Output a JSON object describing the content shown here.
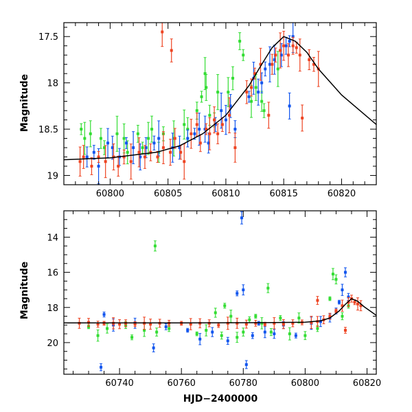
{
  "colors": {
    "green": "#33dd33",
    "blue": "#1155ee",
    "red": "#ee4422",
    "model": "#000000"
  },
  "chart_data": [
    {
      "type": "scatter",
      "title": "",
      "xlabel": "",
      "ylabel": "Magnitude",
      "xlim": [
        60796,
        60823
      ],
      "ylim": [
        19.1,
        17.35
      ],
      "y_inverted": true,
      "x_ticks": [
        60800,
        60805,
        60810,
        60815,
        60820
      ],
      "x_tick_labels": [
        "60800",
        "60805",
        "60810",
        "60815",
        "60820"
      ],
      "y_ticks": [
        17.5,
        18,
        18.5,
        19
      ],
      "y_tick_labels": [
        "17.5",
        "18",
        "18.5",
        "19"
      ],
      "model_curve": {
        "x": [
          60796,
          60800,
          60804,
          60806,
          60808,
          60810,
          60812,
          60813,
          60814,
          60815,
          60816,
          60817,
          60818,
          60820,
          60823
        ],
        "y": [
          18.83,
          18.81,
          18.75,
          18.68,
          18.55,
          18.35,
          18.03,
          17.82,
          17.62,
          17.5,
          17.55,
          17.67,
          17.85,
          18.13,
          18.45
        ]
      },
      "series": [
        {
          "name": "",
          "color": "green",
          "points": [
            [
              60797.5,
              18.5
            ],
            [
              60797.8,
              18.6
            ],
            [
              60798.3,
              18.55
            ],
            [
              60799.2,
              18.6
            ],
            [
              60799.5,
              18.7
            ],
            [
              60800.6,
              18.55
            ],
            [
              60801.2,
              18.6
            ],
            [
              60801.5,
              18.75
            ],
            [
              60802.4,
              18.55
            ],
            [
              60802.8,
              18.7
            ],
            [
              60803.3,
              18.6
            ],
            [
              60803.6,
              18.5
            ],
            [
              60804.2,
              18.75
            ],
            [
              60804.6,
              18.55
            ],
            [
              60805.5,
              18.6
            ],
            [
              60806.4,
              18.45
            ],
            [
              60806.7,
              18.5
            ],
            [
              60807.5,
              18.3
            ],
            [
              60807.9,
              18.15
            ],
            [
              60808.2,
              17.9
            ],
            [
              60808.3,
              18.05
            ],
            [
              60808.6,
              18.35
            ],
            [
              60809.0,
              18.4
            ],
            [
              60809.3,
              18.1
            ],
            [
              60810.2,
              18.1
            ],
            [
              60810.6,
              17.95
            ],
            [
              60811.2,
              17.55
            ],
            [
              60811.5,
              17.7
            ],
            [
              60812.2,
              18.2
            ],
            [
              60812.6,
              18.05
            ],
            [
              60813.1,
              18.2
            ],
            [
              60813.3,
              18.3
            ],
            [
              60814.5,
              17.85
            ]
          ]
        },
        {
          "name": "",
          "color": "blue",
          "points": [
            [
              60798.0,
              18.8
            ],
            [
              60798.6,
              18.75
            ],
            [
              60799.0,
              18.9
            ],
            [
              60799.8,
              18.65
            ],
            [
              60800.2,
              18.7
            ],
            [
              60800.8,
              18.8
            ],
            [
              60801.4,
              18.65
            ],
            [
              60802.0,
              18.7
            ],
            [
              60802.6,
              18.8
            ],
            [
              60803.1,
              18.7
            ],
            [
              60803.8,
              18.65
            ],
            [
              60804.2,
              18.6
            ],
            [
              60805.4,
              18.7
            ],
            [
              60806.0,
              18.7
            ],
            [
              60806.7,
              18.6
            ],
            [
              60807.3,
              18.55
            ],
            [
              60807.7,
              18.5
            ],
            [
              60808.2,
              18.5
            ],
            [
              60808.5,
              18.65
            ],
            [
              60809.1,
              18.45
            ],
            [
              60809.6,
              18.3
            ],
            [
              60810.0,
              18.4
            ],
            [
              60810.4,
              18.25
            ],
            [
              60810.8,
              18.5
            ],
            [
              60812.0,
              18.15
            ],
            [
              60812.4,
              17.95
            ],
            [
              60812.8,
              18.1
            ],
            [
              60813.1,
              18.0
            ],
            [
              60813.4,
              17.85
            ],
            [
              60813.8,
              17.8
            ],
            [
              60814.2,
              17.75
            ],
            [
              60814.8,
              17.7
            ],
            [
              60815.2,
              17.6
            ],
            [
              60815.5,
              17.55
            ],
            [
              60815.8,
              17.5
            ],
            [
              60815.5,
              18.25
            ]
          ]
        },
        {
          "name": "",
          "color": "red",
          "points": [
            [
              60797.4,
              18.85
            ],
            [
              60797.7,
              18.8
            ],
            [
              60798.4,
              18.9
            ],
            [
              60799.0,
              18.8
            ],
            [
              60799.6,
              18.85
            ],
            [
              60800.3,
              18.8
            ],
            [
              60800.7,
              18.9
            ],
            [
              60801.2,
              18.8
            ],
            [
              60801.8,
              18.85
            ],
            [
              60802.5,
              18.75
            ],
            [
              60803.0,
              18.8
            ],
            [
              60803.5,
              18.75
            ],
            [
              60804.1,
              18.8
            ],
            [
              60804.6,
              18.7
            ],
            [
              60805.2,
              18.75
            ],
            [
              60805.6,
              18.6
            ],
            [
              60806.1,
              18.75
            ],
            [
              60806.4,
              18.85
            ],
            [
              60807.0,
              18.55
            ],
            [
              60807.5,
              18.45
            ],
            [
              60807.8,
              18.65
            ],
            [
              60808.3,
              18.5
            ],
            [
              60808.6,
              18.55
            ],
            [
              60809.0,
              18.4
            ],
            [
              60809.3,
              18.55
            ],
            [
              60809.7,
              18.45
            ],
            [
              60810.3,
              18.35
            ],
            [
              60810.8,
              18.7
            ],
            [
              60811.8,
              18.1
            ],
            [
              60812.2,
              18.05
            ],
            [
              60812.5,
              17.9
            ],
            [
              60813.0,
              17.8
            ],
            [
              60813.7,
              18.35
            ],
            [
              60814.0,
              17.8
            ],
            [
              60814.3,
              17.7
            ],
            [
              60814.7,
              17.65
            ],
            [
              60815.0,
              17.6
            ],
            [
              60815.4,
              17.7
            ],
            [
              60815.8,
              17.6
            ],
            [
              60816.1,
              17.62
            ],
            [
              60816.4,
              17.7
            ],
            [
              60816.6,
              18.38
            ],
            [
              60817.2,
              17.75
            ],
            [
              60817.6,
              17.8
            ],
            [
              60818.0,
              17.85
            ],
            [
              60804.5,
              17.45
            ],
            [
              60805.3,
              17.65
            ]
          ]
        }
      ]
    },
    {
      "type": "scatter",
      "title": "",
      "xlabel": "HJD−2400000",
      "ylabel": "Magnitude",
      "xlim": [
        60722,
        60823
      ],
      "ylim": [
        21.8,
        12.5
      ],
      "y_inverted": true,
      "x_ticks": [
        60740,
        60760,
        60780,
        60800,
        60820
      ],
      "x_tick_labels": [
        "60740",
        "60760",
        "60780",
        "60800",
        "60820"
      ],
      "y_ticks": [
        14,
        16,
        18,
        20
      ],
      "y_tick_labels": [
        "14",
        "16",
        "18",
        "20"
      ],
      "model_curve": {
        "x": [
          60722,
          60760,
          60790,
          60800,
          60805,
          60808,
          60811,
          60813,
          60815,
          60817,
          60819,
          60821,
          60823
        ],
        "y": [
          18.88,
          18.88,
          18.86,
          18.84,
          18.76,
          18.6,
          18.2,
          17.82,
          17.5,
          17.65,
          17.95,
          18.2,
          18.45
        ]
      },
      "series": [
        {
          "name": "",
          "color": "green",
          "points": [
            [
              60730,
              19.1
            ],
            [
              60733,
              19.6
            ],
            [
              60736,
              19.2
            ],
            [
              60742,
              19.0
            ],
            [
              60744,
              19.7
            ],
            [
              60748,
              19.3
            ],
            [
              60751.5,
              14.5
            ],
            [
              60752,
              19.4
            ],
            [
              60756,
              19.2
            ],
            [
              60765,
              19.5
            ],
            [
              60768,
              19.3
            ],
            [
              60771,
              18.3
            ],
            [
              60773,
              19.6
            ],
            [
              60774,
              17.9
            ],
            [
              60776,
              18.5
            ],
            [
              60778,
              19.7
            ],
            [
              60780,
              19.4
            ],
            [
              60782,
              18.7
            ],
            [
              60784,
              18.5
            ],
            [
              60786,
              18.9
            ],
            [
              60788,
              16.9
            ],
            [
              60789,
              19.4
            ],
            [
              60792,
              18.6
            ],
            [
              60795,
              19.5
            ],
            [
              60798,
              18.6
            ],
            [
              60800,
              19.6
            ],
            [
              60804,
              19.2
            ],
            [
              60808,
              17.5
            ],
            [
              60809,
              16.1
            ],
            [
              60810,
              16.4
            ],
            [
              60812,
              18.5
            ],
            [
              60814,
              17.9
            ]
          ]
        },
        {
          "name": "",
          "color": "blue",
          "points": [
            [
              60734,
              21.4
            ],
            [
              60735,
              18.4
            ],
            [
              60738,
              19.0
            ],
            [
              60745,
              18.9
            ],
            [
              60751,
              20.3
            ],
            [
              60755,
              19.1
            ],
            [
              60762,
              19.3
            ],
            [
              60766,
              19.8
            ],
            [
              60770,
              19.4
            ],
            [
              60775,
              19.9
            ],
            [
              60778,
              17.2
            ],
            [
              60779.5,
              12.9
            ],
            [
              60780,
              17.0
            ],
            [
              60781,
              21.25
            ],
            [
              60783,
              19.6
            ],
            [
              60785,
              18.9
            ],
            [
              60787,
              19.4
            ],
            [
              60790,
              19.5
            ],
            [
              60793,
              19.0
            ],
            [
              60797,
              19.6
            ],
            [
              60802,
              18.9
            ],
            [
              60805,
              18.8
            ],
            [
              60808,
              18.6
            ],
            [
              60810,
              18.2
            ],
            [
              60811,
              17.7
            ],
            [
              60812,
              17.0
            ],
            [
              60813,
              16.0
            ],
            [
              60814,
              17.4
            ]
          ]
        },
        {
          "name": "",
          "color": "red",
          "points": [
            [
              60727,
              18.9
            ],
            [
              60730,
              18.85
            ],
            [
              60733,
              18.95
            ],
            [
              60735,
              18.9
            ],
            [
              60738,
              18.9
            ],
            [
              60740,
              18.95
            ],
            [
              60742,
              18.9
            ],
            [
              60745,
              18.95
            ],
            [
              60748,
              18.9
            ],
            [
              60750,
              18.95
            ],
            [
              60753,
              18.9
            ],
            [
              60756,
              18.9
            ],
            [
              60760,
              18.9
            ],
            [
              60763,
              18.95
            ],
            [
              60766,
              18.9
            ],
            [
              60769,
              18.9
            ],
            [
              60772,
              19.0
            ],
            [
              60775,
              18.9
            ],
            [
              60778,
              18.9
            ],
            [
              60781,
              18.95
            ],
            [
              60784,
              18.9
            ],
            [
              60787,
              18.95
            ],
            [
              60790,
              18.9
            ],
            [
              60793,
              18.95
            ],
            [
              60796,
              18.9
            ],
            [
              60799,
              18.85
            ],
            [
              60802,
              18.85
            ],
            [
              60804,
              18.8
            ],
            [
              60806,
              18.7
            ],
            [
              60808,
              18.5
            ],
            [
              60810,
              18.2
            ],
            [
              60812,
              17.9
            ],
            [
              60814,
              17.7
            ],
            [
              60815,
              17.5
            ],
            [
              60816,
              17.7
            ],
            [
              60817,
              17.8
            ],
            [
              60818,
              17.9
            ],
            [
              60804,
              17.6
            ],
            [
              60813,
              19.3
            ]
          ]
        }
      ]
    }
  ]
}
